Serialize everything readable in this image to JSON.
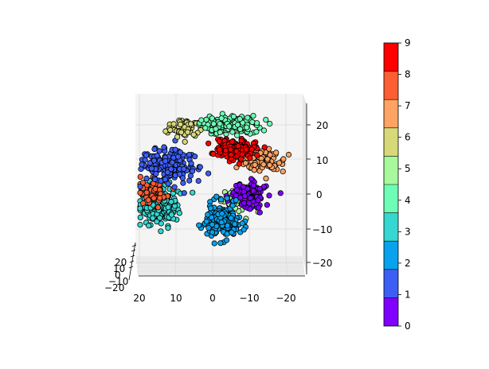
{
  "chart_data": {
    "type": "scatter",
    "title": "",
    "projection": "3d",
    "axis_ranges": {
      "x": [
        -25,
        25
      ],
      "y": [
        -22,
        24
      ],
      "z": [
        -25,
        25
      ]
    },
    "x_ticks": [
      "20",
      "10",
      "0",
      "−10",
      "−20"
    ],
    "z_ticks": [
      "20",
      "10",
      "0",
      "−10",
      "−20"
    ],
    "y_ticks": [
      "20",
      "10",
      "0",
      "−10",
      "−20"
    ],
    "grid": true,
    "colormap": "rainbow",
    "colorbar": {
      "placement": "right",
      "ticks": [
        "0",
        "1",
        "2",
        "3",
        "4",
        "5",
        "6",
        "7",
        "8",
        "9"
      ],
      "colors": [
        "#8000ff",
        "#3d5ef5",
        "#08a2ed",
        "#35d7d0",
        "#6efdb6",
        "#a8f89c",
        "#d7d878",
        "#fea363",
        "#fe5e33",
        "#ff0000"
      ]
    },
    "clusters": [
      {
        "label": 0,
        "x": -10,
        "y": 0,
        "count": 110
      },
      {
        "label": 1,
        "x": 12,
        "y": 8,
        "count": 190
      },
      {
        "label": 2,
        "x": -3,
        "y": -8,
        "count": 200
      },
      {
        "label": 3,
        "x": 15,
        "y": -3,
        "count": 200
      },
      {
        "label": 4,
        "x": -5,
        "y": 20,
        "count": 170
      },
      {
        "label": 5,
        "x": -6,
        "y": -2,
        "count": 60
      },
      {
        "label": 6,
        "x": 8,
        "y": 19,
        "count": 80
      },
      {
        "label": 7,
        "x": -13,
        "y": 10,
        "count": 140
      },
      {
        "label": 8,
        "x": 16,
        "y": 1,
        "count": 50
      },
      {
        "label": 9,
        "x": -6,
        "y": 13,
        "count": 180
      }
    ]
  }
}
